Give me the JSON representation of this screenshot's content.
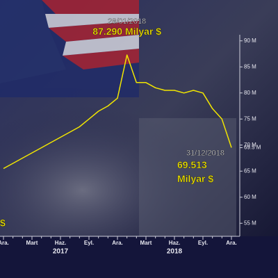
{
  "chart_data": {
    "type": "line",
    "categories": [
      "Ara.",
      null,
      null,
      "Mart",
      null,
      null,
      "Haz.",
      null,
      null,
      "Eyl.",
      null,
      null,
      "Ara.",
      null,
      null,
      "Mart",
      null,
      null,
      "Haz.",
      null,
      null,
      "Eyl.",
      null,
      null,
      "Ara."
    ],
    "years": [
      {
        "label": "2017",
        "category": 6
      },
      {
        "label": "2018",
        "category": 18
      }
    ],
    "series": [
      {
        "name": null,
        "color": "#f2e600",
        "values": [
          65.5,
          66.5,
          67.5,
          68.5,
          69.5,
          70.5,
          71.5,
          72.5,
          73.5,
          75,
          76.5,
          77.5,
          79,
          87.29,
          82,
          82,
          81,
          80.5,
          80.5,
          80,
          80.5,
          80,
          77,
          75,
          69.513
        ]
      }
    ],
    "ylim": [
      52.5,
      92.5
    ],
    "yticks": [
      {
        "value": 55,
        "label": "55 M"
      },
      {
        "value": 60,
        "label": "60 M"
      },
      {
        "value": 65,
        "label": "65 M"
      },
      {
        "value": 69.5,
        "label": "69.5 M"
      },
      {
        "value": 70,
        "label": "70 M"
      },
      {
        "value": 75,
        "label": "75 M"
      },
      {
        "value": 80,
        "label": "80 M"
      },
      {
        "value": 85,
        "label": "85 M"
      },
      {
        "value": 90,
        "label": "90 M"
      }
    ],
    "annotations": [
      {
        "text": "28/01/2018",
        "category": 13
      },
      {
        "text": "87.290 Milyar $",
        "category": 13
      },
      {
        "text": "31/12/2018",
        "category": 24
      },
      {
        "text": "69.513",
        "category": 24
      },
      {
        "text": "Milyar $",
        "category": 24
      },
      {
        "text": "$",
        "category": 0
      }
    ]
  }
}
